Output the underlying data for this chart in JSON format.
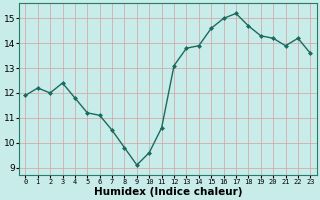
{
  "x": [
    0,
    1,
    2,
    3,
    4,
    5,
    6,
    7,
    8,
    9,
    10,
    11,
    12,
    13,
    14,
    15,
    16,
    17,
    18,
    19,
    20,
    21,
    22,
    23
  ],
  "y": [
    11.9,
    12.2,
    12.0,
    12.4,
    11.8,
    11.2,
    11.1,
    10.5,
    9.8,
    9.1,
    9.6,
    10.6,
    13.1,
    13.8,
    13.9,
    14.6,
    15.0,
    15.2,
    14.7,
    14.3,
    14.2,
    13.9,
    14.2,
    13.6
  ],
  "line_color": "#1a6b5e",
  "marker": "D",
  "marker_size": 2.0,
  "bg_color": "#c8ecea",
  "grid_color": "#d4a0a0",
  "xlabel": "Humidex (Indice chaleur)",
  "ylim": [
    8.7,
    15.6
  ],
  "xlim": [
    -0.5,
    23.5
  ],
  "yticks": [
    9,
    10,
    11,
    12,
    13,
    14,
    15
  ],
  "xticks": [
    0,
    1,
    2,
    3,
    4,
    5,
    6,
    7,
    8,
    9,
    10,
    11,
    12,
    13,
    14,
    15,
    16,
    17,
    18,
    19,
    20,
    21,
    22,
    23
  ],
  "xlabel_fontsize": 7.5,
  "tick_fontsize": 6.5,
  "ytick_fontsize": 7.0,
  "linewidth": 1.0
}
